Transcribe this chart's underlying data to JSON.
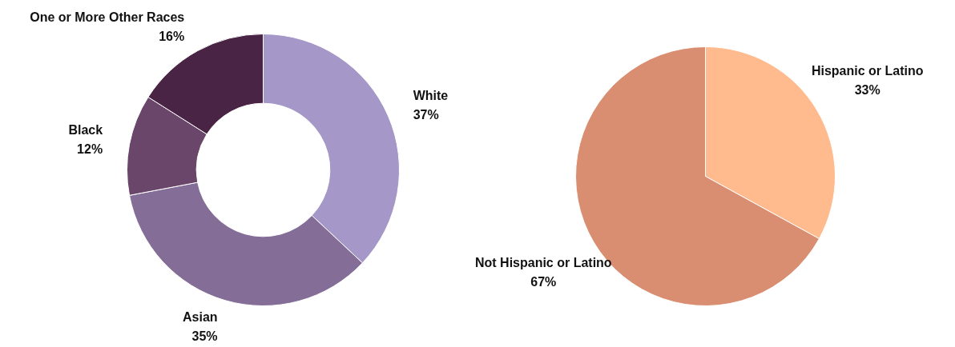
{
  "chart_data": [
    {
      "type": "donut",
      "categories": [
        "White",
        "Asian",
        "Black",
        "One or More Other Races"
      ],
      "values": [
        37,
        35,
        12,
        16
      ],
      "value_labels": [
        "37%",
        "35%",
        "12%",
        "16%"
      ],
      "colors": [
        "#a598c9",
        "#846e97",
        "#6a466b",
        "#4a2444"
      ]
    },
    {
      "type": "pie",
      "categories": [
        "Hispanic or Latino",
        "Not Hispanic or Latino"
      ],
      "values": [
        33,
        67
      ],
      "value_labels": [
        "33%",
        "67%"
      ],
      "colors": [
        "#ffbb8e",
        "#da8e71"
      ]
    }
  ]
}
